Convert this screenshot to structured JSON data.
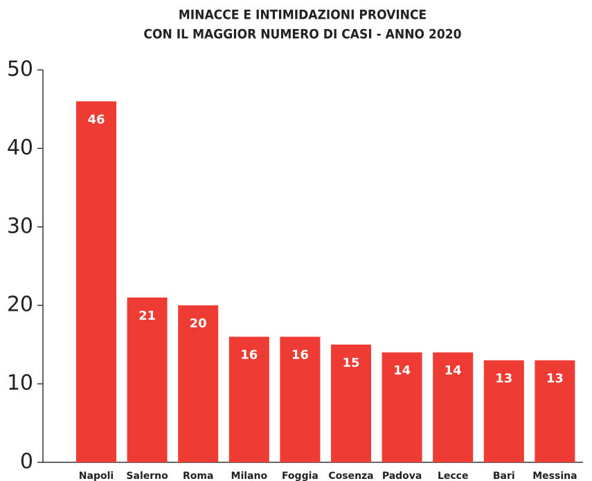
{
  "chart_data": {
    "type": "bar",
    "title": [
      "MINACCE E INTIMIDAZIONI PROVINCE",
      "CON IL MAGGIOR NUMERO DI CASI - ANNO 2020"
    ],
    "categories": [
      "Napoli",
      "Salerno",
      "Roma",
      "Milano",
      "Foggia",
      "Cosenza",
      "Padova",
      "Lecce",
      "Bari",
      "Messina"
    ],
    "values": [
      46,
      21,
      20,
      16,
      16,
      15,
      14,
      14,
      13,
      13
    ],
    "color": "#ee3b33",
    "ylim": [
      0,
      50
    ],
    "yticks": [
      0,
      10,
      20,
      30,
      40,
      50
    ],
    "grid": false
  }
}
